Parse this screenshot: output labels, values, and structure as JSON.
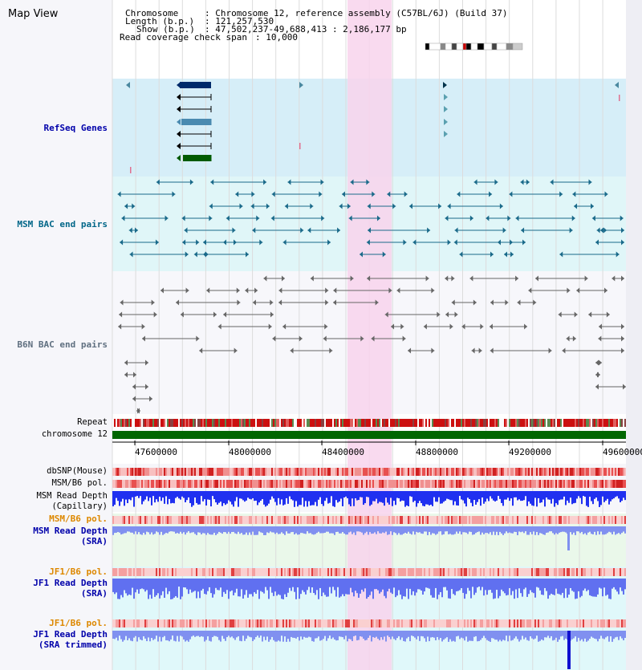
{
  "title": "Map View",
  "info": {
    "chromosome_label": "Chromosome",
    "chromosome_value": ": Chromosome 12, reference assembly (C57BL/6J) (Build 37)",
    "length_label": "Length (b.p.)",
    "length_value": ": 121,257,530",
    "show_label": "Show (b.p.)",
    "show_value": ": 47,502,237-49,688,413 : 2,186,177 bp",
    "coverage_label": "Read coverage check span",
    "coverage_value": ": 10,000"
  },
  "tracks": {
    "refseq": "RefSeq Genes",
    "msm_bac": "MSM BAC end pairs",
    "b6n_bac": "B6N BAC end pairs",
    "repeat": "Repeat",
    "chromosome": "chromosome 12",
    "dbsnp": "dbSNP(Mouse)",
    "msm_b6_pol": "MSM/B6 pol.",
    "msm_read_depth_cap_1": "MSM Read Depth",
    "msm_read_depth_cap_2": "(Capillary)",
    "msm_b6_pol_sra": "MSM/B6 pol.",
    "msm_read_depth_sra_1": "MSM Read Depth",
    "msm_read_depth_sra_2": "(SRA)",
    "jf1_b6_pol": "JF1/B6 pol.",
    "jf1_read_depth_1": "JF1 Read Depth",
    "jf1_read_depth_2": "(SRA)",
    "jf1_b6_pol_trim": "JF1/B6 pol.",
    "jf1_read_depth_trim_1": "JF1 Read Depth",
    "jf1_read_depth_trim_2": "(SRA trimmed)"
  },
  "axis": {
    "ticks": [
      "47600000",
      "48000000",
      "48400000",
      "48800000",
      "49200000",
      "49600000"
    ]
  },
  "colors": {
    "blue_label": "#0000aa",
    "teal_label": "#006688",
    "orange_label": "#dd8800",
    "highlight": "#f8d4ec",
    "refseq_bg": "#d6eef8",
    "msm_bg": "#e0f6f8",
    "chromosome_green": "#006600"
  }
}
